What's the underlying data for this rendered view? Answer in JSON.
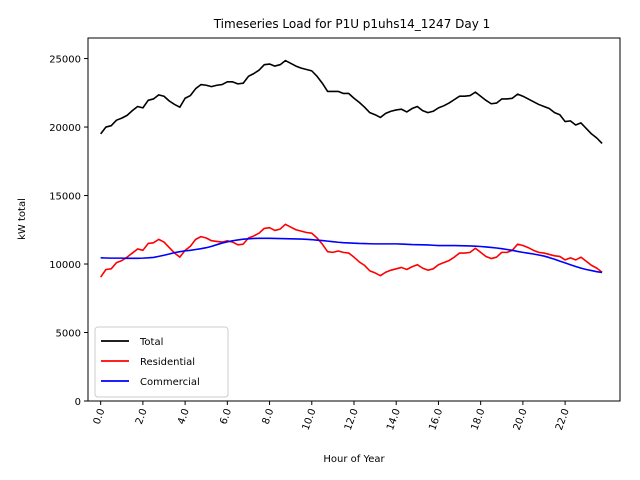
{
  "chart_data": {
    "type": "line",
    "title": "Timeseries Load for P1U p1uhs14_1247  Day 1",
    "xlabel": "Hour of Year",
    "ylabel": "kW total",
    "xlim": [
      -0.6,
      24.6
    ],
    "ylim": [
      0,
      26500
    ],
    "x_ticks": [
      0,
      2,
      4,
      6,
      8,
      10,
      12,
      14,
      16,
      18,
      20,
      22
    ],
    "x_tick_labels": [
      "0.0",
      "2.0",
      "4.0",
      "6.0",
      "8.0",
      "10.0",
      "12.0",
      "14.0",
      "16.0",
      "18.0",
      "20.0",
      "22.0"
    ],
    "y_ticks": [
      0,
      5000,
      10000,
      15000,
      20000,
      25000
    ],
    "y_tick_labels": [
      "0",
      "5000",
      "10000",
      "15000",
      "20000",
      "25000"
    ],
    "grid": false,
    "legend_position": "lower-left",
    "x_step_hours": 0.25,
    "series": [
      {
        "name": "Total",
        "color": "#000000",
        "values": [
          19500,
          20000,
          20100,
          20500,
          20650,
          20850,
          21200,
          21500,
          21400,
          21950,
          22050,
          22350,
          22250,
          21900,
          21650,
          21450,
          22100,
          22300,
          22800,
          23100,
          23050,
          22950,
          23050,
          23100,
          23300,
          23300,
          23150,
          23200,
          23700,
          23900,
          24150,
          24550,
          24600,
          24450,
          24550,
          24850,
          24650,
          24450,
          24300,
          24200,
          24100,
          23700,
          23200,
          22600,
          22600,
          22600,
          22450,
          22450,
          22100,
          21800,
          21450,
          21050,
          20900,
          20700,
          21000,
          21150,
          21250,
          21300,
          21100,
          21350,
          21500,
          21200,
          21050,
          21150,
          21400,
          21550,
          21750,
          22000,
          22250,
          22250,
          22300,
          22550,
          22250,
          21950,
          21700,
          21750,
          22050,
          22050,
          22100,
          22400,
          22250,
          22050,
          21850,
          21650,
          21500,
          21350,
          21050,
          20900,
          20400,
          20450,
          20150,
          20300,
          19900,
          19500,
          19200,
          18800
        ]
      },
      {
        "name": "Residential",
        "color": "#ff0000",
        "values": [
          9050,
          9600,
          9650,
          10100,
          10250,
          10500,
          10800,
          11100,
          11000,
          11500,
          11550,
          11800,
          11600,
          11200,
          10800,
          10500,
          11000,
          11300,
          11800,
          12000,
          11900,
          11700,
          11650,
          11600,
          11700,
          11600,
          11400,
          11450,
          11900,
          12050,
          12250,
          12600,
          12650,
          12450,
          12550,
          12900,
          12700,
          12500,
          12400,
          12300,
          12250,
          11900,
          11450,
          10900,
          10850,
          10950,
          10850,
          10800,
          10500,
          10150,
          9900,
          9500,
          9350,
          9150,
          9400,
          9550,
          9650,
          9750,
          9600,
          9800,
          9950,
          9700,
          9550,
          9650,
          9950,
          10100,
          10250,
          10500,
          10800,
          10800,
          10850,
          11150,
          10850,
          10550,
          10400,
          10500,
          10850,
          10850,
          11000,
          11450,
          11350,
          11200,
          11000,
          10850,
          10800,
          10700,
          10600,
          10550,
          10300,
          10450,
          10300,
          10500,
          10200,
          9900,
          9700,
          9400
        ]
      },
      {
        "name": "Commercial",
        "color": "#0000ff",
        "values": [
          10450,
          10440,
          10430,
          10430,
          10430,
          10420,
          10420,
          10420,
          10430,
          10450,
          10480,
          10560,
          10640,
          10730,
          10830,
          10900,
          10960,
          11000,
          11060,
          11120,
          11190,
          11290,
          11410,
          11530,
          11620,
          11700,
          11760,
          11810,
          11840,
          11870,
          11880,
          11880,
          11880,
          11870,
          11860,
          11850,
          11840,
          11830,
          11820,
          11800,
          11780,
          11740,
          11710,
          11670,
          11630,
          11590,
          11560,
          11540,
          11520,
          11500,
          11490,
          11480,
          11470,
          11470,
          11470,
          11470,
          11470,
          11460,
          11440,
          11420,
          11410,
          11400,
          11390,
          11370,
          11350,
          11350,
          11350,
          11350,
          11340,
          11330,
          11320,
          11300,
          11280,
          11250,
          11210,
          11170,
          11120,
          11060,
          11000,
          10920,
          10850,
          10790,
          10730,
          10660,
          10580,
          10470,
          10350,
          10210,
          10080,
          9950,
          9820,
          9700,
          9600,
          9520,
          9440,
          9380
        ]
      }
    ]
  }
}
